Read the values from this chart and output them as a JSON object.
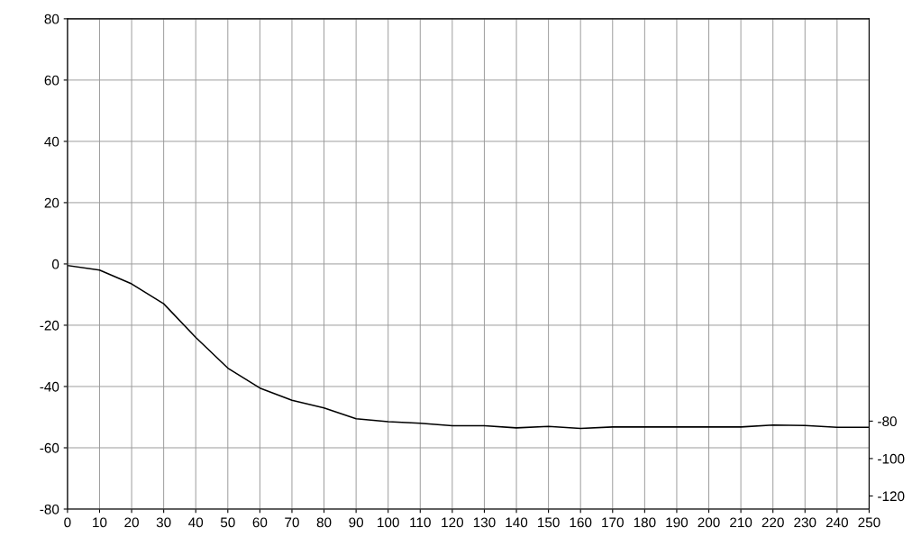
{
  "chart_data": {
    "type": "line",
    "x": [
      0,
      10,
      20,
      30,
      40,
      50,
      60,
      70,
      80,
      90,
      100,
      110,
      120,
      130,
      140,
      150,
      160,
      170,
      180,
      190,
      200,
      210,
      220,
      230,
      240,
      250
    ],
    "series": [
      {
        "color": "#000000",
        "values": [
          -0.5,
          -2,
          -6.5,
          -13,
          -24,
          -34,
          -40.5,
          -44.5,
          -47,
          -50.5,
          -51.5,
          -52,
          -52.8,
          -52.8,
          -53.5,
          -53,
          -53.7,
          -53.2,
          -53.2,
          -53.2,
          -53.2,
          -53.2,
          -52.6,
          -52.7,
          -53.3,
          -53.3
        ]
      }
    ],
    "xlim": [
      0,
      250
    ],
    "xticks": [
      0,
      10,
      20,
      30,
      40,
      50,
      60,
      70,
      80,
      90,
      100,
      110,
      120,
      130,
      140,
      150,
      160,
      170,
      180,
      190,
      200,
      210,
      220,
      230,
      240,
      250
    ],
    "ylim": [
      -80,
      80
    ],
    "yticks": [
      -80,
      -60,
      -40,
      -20,
      0,
      20,
      40,
      60,
      80
    ],
    "y2lim": [
      -127,
      135
    ],
    "y2ticks": [
      -120,
      -100,
      -80
    ],
    "grid": true,
    "marker": "none",
    "line_style": "solid"
  }
}
